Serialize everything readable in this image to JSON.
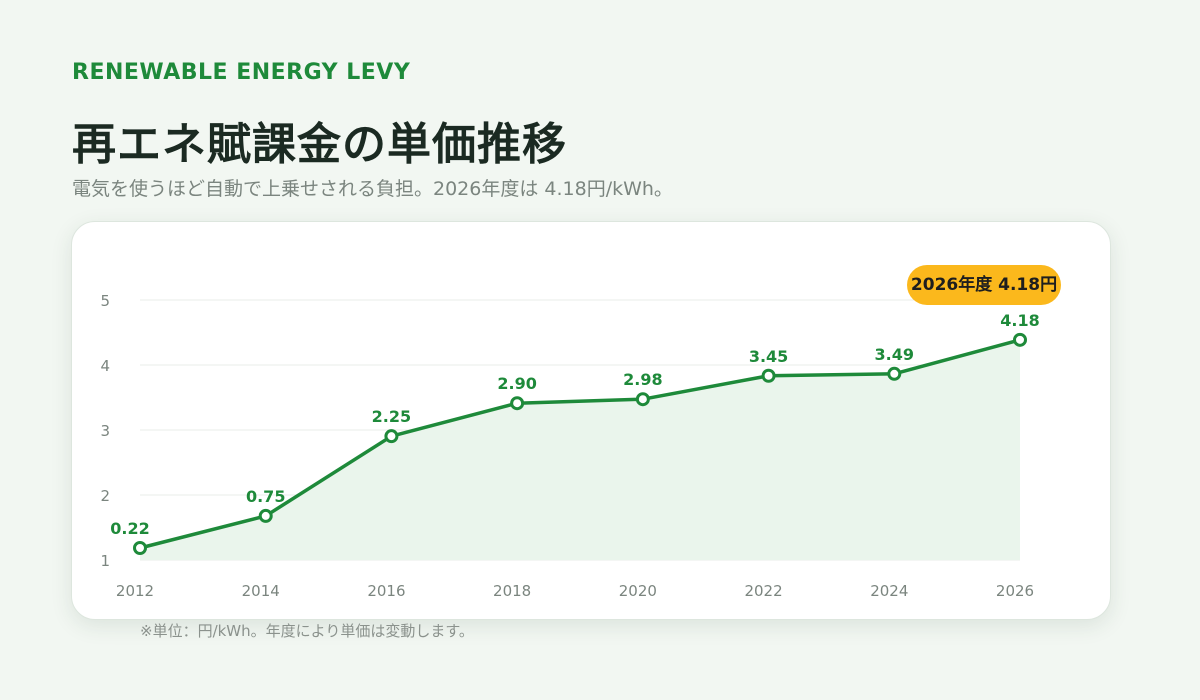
{
  "header": {
    "eyebrow": "RENEWABLE ENERGY LEVY",
    "title": "再エネ賦課金の単価推移",
    "subtitle": "電気を使うほど自動で上乗せされる負担。2026年度は 4.18円/kWh。"
  },
  "callout": {
    "text": "2026年度 4.18円"
  },
  "footnote": "※単位：円/kWh。年度により単価は変動します。",
  "colors": {
    "accent": "#1e8a3a",
    "area_fill": "#eaf5ec",
    "callout": "#fbb81c",
    "grid": "#e8ece9",
    "tick": "#7b857f"
  },
  "chart_data": {
    "type": "line",
    "title": "",
    "xlabel": "",
    "ylabel": "",
    "categories": [
      "2012",
      "2014",
      "2016",
      "2018",
      "2020",
      "2022",
      "2024",
      "2026"
    ],
    "series": [
      {
        "values": [
          0.22,
          0.75,
          2.25,
          2.9,
          2.98,
          3.45,
          3.49,
          4.18
        ]
      }
    ],
    "data_labels": [
      "0.22",
      "0.75",
      "2.25",
      "2.90",
      "2.98",
      "3.45",
      "3.49",
      "4.18"
    ],
    "y_ticks": [
      "1",
      "2",
      "3",
      "4",
      "5"
    ],
    "ylim": [
      0,
      5
    ],
    "grid": true,
    "legend": "none",
    "area_fill": true
  }
}
